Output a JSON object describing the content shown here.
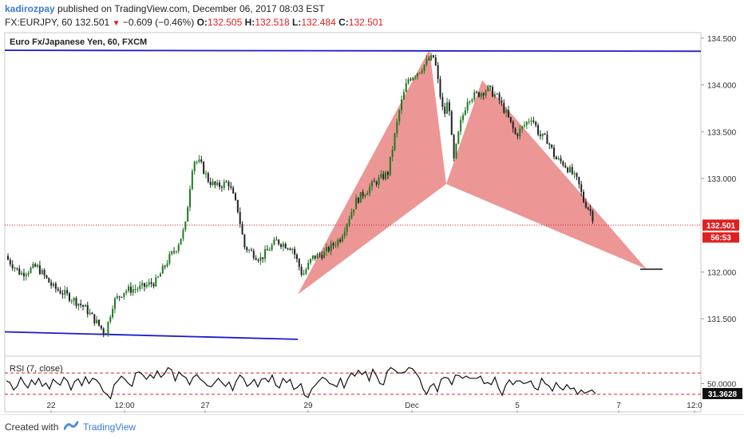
{
  "header": {
    "user": "kadirozpay",
    "published": "published on TradingView.com, December 06, 2017 08:03 EST",
    "symbol": "FX:EURJPY, 60",
    "price": "132.501",
    "down_arrow": "▼",
    "change": "−0.609 (−0.46%)",
    "o_label": "O:",
    "o_value": "132.505",
    "h_label": "H:",
    "h_value": "132.518",
    "l_label": "L:",
    "l_value": "132.484",
    "c_label": "C:",
    "c_value": "132.501"
  },
  "footer": {
    "created": "Created with",
    "brand": "TradingView",
    "logo_icon": "tradingview-logo-icon"
  },
  "colors": {
    "bull": "#1f7a1f",
    "bear": "#222222",
    "harmonic": "#e57373",
    "trendline": "#1a1acc",
    "price_line": "#e02020",
    "rsi": "#111111",
    "rsi_band": "#e02020"
  },
  "chart_data": [
    {
      "type": "candlestick",
      "title": "Euro Fx/Japanese Yen, 60, FXCM",
      "ylim": [
        131.1,
        134.55
      ],
      "y_ticks": [
        "134.500",
        "134.000",
        "133.500",
        "133.000",
        "132.000",
        "131.500"
      ],
      "x_ticks": [
        "22",
        "12:00",
        "27",
        "29",
        "Dec",
        "5",
        "7",
        "12:0"
      ],
      "last_price": "132.501",
      "countdown": "56:53",
      "path": [
        [
          0,
          132.17
        ],
        [
          20,
          131.98
        ],
        [
          40,
          132.06
        ],
        [
          60,
          131.84
        ],
        [
          80,
          131.74
        ],
        [
          100,
          131.62
        ],
        [
          116,
          131.45
        ],
        [
          126,
          131.34
        ],
        [
          136,
          131.68
        ],
        [
          150,
          131.8
        ],
        [
          170,
          131.83
        ],
        [
          190,
          131.9
        ],
        [
          205,
          132.14
        ],
        [
          215,
          132.26
        ],
        [
          226,
          132.48
        ],
        [
          230,
          132.78
        ],
        [
          236,
          133.2
        ],
        [
          245,
          133.16
        ],
        [
          255,
          132.98
        ],
        [
          265,
          132.91
        ],
        [
          280,
          132.96
        ],
        [
          292,
          132.66
        ],
        [
          300,
          132.27
        ],
        [
          320,
          132.14
        ],
        [
          340,
          132.33
        ],
        [
          360,
          132.26
        ],
        [
          373,
          131.96
        ],
        [
          385,
          132.15
        ],
        [
          400,
          132.2
        ],
        [
          420,
          132.36
        ],
        [
          440,
          132.76
        ],
        [
          460,
          132.93
        ],
        [
          480,
          133.06
        ],
        [
          495,
          133.76
        ],
        [
          505,
          134.06
        ],
        [
          520,
          134.16
        ],
        [
          530,
          134.26
        ],
        [
          538,
          134.3
        ],
        [
          544,
          133.96
        ],
        [
          550,
          133.66
        ],
        [
          556,
          133.86
        ],
        [
          562,
          133.16
        ],
        [
          570,
          133.56
        ],
        [
          580,
          133.86
        ],
        [
          595,
          133.91
        ],
        [
          605,
          133.96
        ],
        [
          618,
          133.86
        ],
        [
          630,
          133.66
        ],
        [
          640,
          133.46
        ],
        [
          650,
          133.56
        ],
        [
          660,
          133.66
        ],
        [
          670,
          133.46
        ],
        [
          680,
          133.41
        ],
        [
          690,
          133.21
        ],
        [
          700,
          133.16
        ],
        [
          710,
          133.06
        ],
        [
          718,
          132.96
        ],
        [
          725,
          132.76
        ],
        [
          733,
          132.66
        ],
        [
          740,
          132.51
        ],
        [
          744,
          132.5
        ]
      ],
      "harmonic": {
        "x": [
          "Nov 29",
          "Nov 30",
          "Dec 1",
          "Dec 4",
          "Dec 6",
          "Dec 7"
        ],
        "points": [
          [
            "Nov 29",
            131.76
          ],
          [
            "Nov 30",
            134.38
          ],
          [
            "Dec 1",
            132.94
          ],
          [
            "Dec 4",
            134.05
          ],
          [
            "Dec 6",
            132.7
          ],
          [
            "Dec 7",
            132.03
          ]
        ]
      },
      "trendlines": [
        {
          "from": [
            "Nov 21",
            134.37
          ],
          "to": [
            "Dec 8",
            134.36
          ]
        },
        {
          "from": [
            "Nov 21",
            131.36
          ],
          "to": [
            "Nov 29",
            131.28
          ]
        }
      ]
    },
    {
      "type": "line",
      "title": "RSI (7, close)",
      "ylim": [
        0,
        100
      ],
      "y_ticks": [
        "50.0000"
      ],
      "last_value": "31.3628",
      "bands": [
        70,
        30
      ],
      "series": [
        {
          "values": [
            55,
            52,
            38,
            45,
            62,
            50,
            42,
            57,
            48,
            60,
            45,
            51,
            40,
            58,
            52,
            47,
            62,
            55,
            38,
            54,
            59,
            46,
            63,
            50,
            60,
            57,
            49,
            35,
            30,
            22,
            48,
            55,
            64,
            58,
            50,
            45,
            70,
            72,
            66,
            58,
            67,
            60,
            74,
            62,
            68,
            80,
            76,
            55,
            72,
            65,
            61,
            48,
            62,
            67,
            58,
            53,
            46,
            44,
            52,
            60,
            52,
            45,
            53,
            37,
            55,
            66,
            60,
            45,
            50,
            58,
            44,
            58,
            60,
            53,
            66,
            47,
            42,
            60,
            52,
            58,
            39,
            43,
            50,
            28,
            24,
            40,
            47,
            55,
            62,
            58,
            50,
            48,
            44,
            60,
            42,
            58,
            70,
            64,
            75,
            67,
            73,
            55,
            77,
            65,
            50,
            48,
            73,
            80,
            76,
            70,
            70,
            72,
            80,
            78,
            70,
            60,
            40,
            30,
            45,
            50,
            35,
            58,
            62,
            60,
            48,
            66,
            65,
            60,
            64,
            60,
            60,
            60,
            64,
            50,
            52,
            48,
            62,
            42,
            28,
            47,
            57,
            48,
            55,
            55,
            50,
            52,
            55,
            42,
            38,
            60,
            50,
            46,
            36,
            52,
            43,
            38,
            48,
            40,
            42,
            30,
            38,
            32,
            35,
            38,
            31
          ]
        }
      ]
    }
  ]
}
